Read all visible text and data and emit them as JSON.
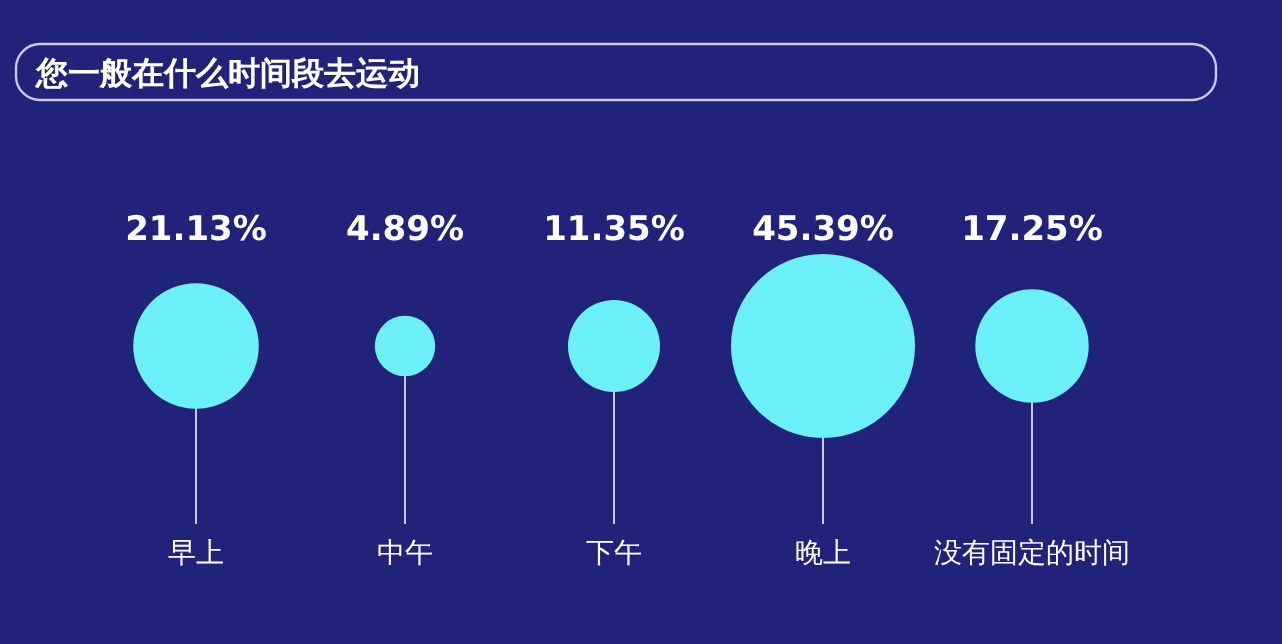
{
  "chart_data": {
    "type": "other",
    "title": "您一般在什么时间段去运动",
    "categories": [
      "早上",
      "中午",
      "下午",
      "晚上",
      "没有固定的时间"
    ],
    "values": [
      21.13,
      4.89,
      11.35,
      45.39,
      17.25
    ],
    "value_labels": [
      "21.13%",
      "4.89%",
      "11.35%",
      "45.39%",
      "17.25%"
    ],
    "color": "#6cf0f8"
  }
}
